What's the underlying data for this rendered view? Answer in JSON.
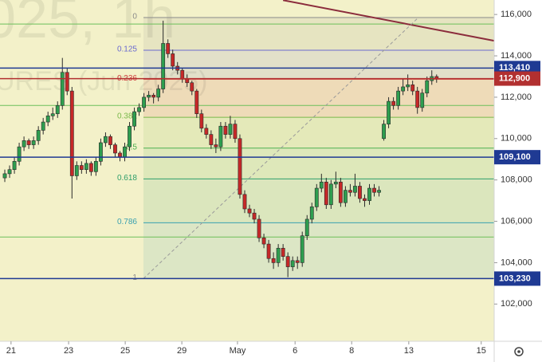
{
  "chart_data": {
    "type": "candlestick",
    "watermark": {
      "symbol": "025, 1h",
      "name": "URES (Jun 2025)"
    },
    "up_color": "#2e9e4f",
    "down_color": "#c62828",
    "xlim": [
      -1,
      102
    ],
    "ylim": [
      100200,
      116700
    ],
    "xticks": [
      {
        "value": 1.3,
        "label": "21"
      },
      {
        "value": 13.3,
        "label": "23"
      },
      {
        "value": 25.1,
        "label": "25"
      },
      {
        "value": 36.9,
        "label": "29"
      },
      {
        "value": 48.5,
        "label": "May"
      },
      {
        "value": 60.5,
        "label": "6"
      },
      {
        "value": 72.3,
        "label": "8"
      },
      {
        "value": 84.2,
        "label": "13"
      },
      {
        "value": 99.3,
        "label": "15"
      }
    ],
    "yticks": [
      {
        "value": 102000,
        "label": "102,000"
      },
      {
        "value": 104000,
        "label": "104,000"
      },
      {
        "value": 106000,
        "label": "106,000"
      },
      {
        "value": 108000,
        "label": "108,000"
      },
      {
        "value": 110000,
        "label": "110,000"
      },
      {
        "value": 112000,
        "label": "112,000"
      },
      {
        "value": 114000,
        "label": "114,000"
      },
      {
        "value": 116000,
        "label": "116,000"
      }
    ],
    "candles": [
      [
        108100,
        108500,
        107900,
        108300
      ],
      [
        108300,
        108700,
        108100,
        108500
      ],
      [
        108500,
        109100,
        108300,
        108900
      ],
      [
        108900,
        109800,
        108700,
        109600
      ],
      [
        109600,
        110100,
        109400,
        109900
      ],
      [
        109900,
        110000,
        109500,
        109700
      ],
      [
        109700,
        110100,
        109500,
        109900
      ],
      [
        109900,
        110600,
        109700,
        110400
      ],
      [
        110400,
        111000,
        110200,
        110800
      ],
      [
        110800,
        111300,
        110600,
        111100
      ],
      [
        111100,
        111500,
        110900,
        111200
      ],
      [
        111200,
        111800,
        111000,
        111600
      ],
      [
        111600,
        113900,
        111400,
        113200
      ],
      [
        113200,
        113400,
        112100,
        112300
      ],
      [
        112300,
        112500,
        107100,
        108200
      ],
      [
        108200,
        108900,
        108000,
        108700
      ],
      [
        108700,
        108900,
        108300,
        108500
      ],
      [
        108500,
        109000,
        108300,
        108800
      ],
      [
        108800,
        108900,
        108200,
        108400
      ],
      [
        108400,
        109100,
        108200,
        108900
      ],
      [
        108900,
        110000,
        108700,
        109800
      ],
      [
        109800,
        110300,
        109600,
        110100
      ],
      [
        110100,
        110200,
        109500,
        109700
      ],
      [
        109700,
        109800,
        109100,
        109300
      ],
      [
        109300,
        109400,
        108900,
        109100
      ],
      [
        109100,
        109800,
        108900,
        109600
      ],
      [
        109600,
        110800,
        109400,
        110600
      ],
      [
        110600,
        111500,
        110400,
        111300
      ],
      [
        111300,
        111700,
        111100,
        111500
      ],
      [
        111500,
        112200,
        111300,
        112000
      ],
      [
        112000,
        112300,
        111800,
        112100
      ],
      [
        112100,
        112200,
        111700,
        112000
      ],
      [
        112000,
        112600,
        111800,
        112400
      ],
      [
        112400,
        115700,
        112200,
        114600
      ],
      [
        114600,
        114800,
        113900,
        114100
      ],
      [
        114100,
        114300,
        113300,
        113500
      ],
      [
        113500,
        113700,
        113100,
        113300
      ],
      [
        113300,
        113400,
        112700,
        112900
      ],
      [
        112900,
        113100,
        112500,
        112700
      ],
      [
        112700,
        112800,
        112100,
        112300
      ],
      [
        112300,
        112400,
        111000,
        111200
      ],
      [
        111200,
        111400,
        110300,
        110500
      ],
      [
        110500,
        110700,
        110000,
        110200
      ],
      [
        110200,
        110400,
        109500,
        109700
      ],
      [
        109700,
        110000,
        109300,
        109600
      ],
      [
        109600,
        110800,
        109400,
        110600
      ],
      [
        110600,
        110800,
        110000,
        110200
      ],
      [
        110200,
        111100,
        110000,
        110700
      ],
      [
        110700,
        110900,
        109800,
        110000
      ],
      [
        110000,
        110200,
        107100,
        107300
      ],
      [
        107300,
        107500,
        106400,
        106600
      ],
      [
        106600,
        106800,
        106200,
        106400
      ],
      [
        106400,
        106600,
        105900,
        106100
      ],
      [
        106100,
        106300,
        105000,
        105200
      ],
      [
        105200,
        105400,
        104700,
        104900
      ],
      [
        104900,
        105100,
        104000,
        104200
      ],
      [
        104200,
        104500,
        103700,
        104000
      ],
      [
        104000,
        104900,
        103800,
        104700
      ],
      [
        104700,
        104900,
        104100,
        104300
      ],
      [
        104300,
        104500,
        103300,
        103800
      ],
      [
        103800,
        104300,
        103600,
        104100
      ],
      [
        104100,
        104300,
        103700,
        104000
      ],
      [
        104000,
        105500,
        103800,
        105300
      ],
      [
        105300,
        106300,
        105100,
        106100
      ],
      [
        106100,
        106900,
        105900,
        106700
      ],
      [
        106700,
        107800,
        106500,
        107600
      ],
      [
        107600,
        108300,
        107400,
        107900
      ],
      [
        107900,
        108100,
        106600,
        106800
      ],
      [
        106800,
        108000,
        106600,
        107800
      ],
      [
        107800,
        108400,
        107600,
        107900
      ],
      [
        107900,
        108100,
        106700,
        106900
      ],
      [
        106900,
        107700,
        106700,
        107500
      ],
      [
        107500,
        107800,
        107200,
        107400
      ],
      [
        107400,
        108300,
        107200,
        107700
      ],
      [
        107700,
        107900,
        106900,
        107100
      ],
      [
        107100,
        107300,
        106700,
        107000
      ],
      [
        107000,
        107800,
        106800,
        107600
      ],
      [
        107600,
        107800,
        107200,
        107400
      ],
      [
        107400,
        107700,
        107200,
        107500
      ],
      [
        110000,
        110900,
        109900,
        110700
      ],
      [
        110700,
        112000,
        110500,
        111800
      ],
      [
        111800,
        112000,
        111400,
        111600
      ],
      [
        111600,
        112500,
        111400,
        112300
      ],
      [
        112300,
        112900,
        112100,
        112500
      ],
      [
        112500,
        113100,
        112300,
        112600
      ],
      [
        112600,
        112800,
        112100,
        112300
      ],
      [
        112300,
        112500,
        111200,
        111500
      ],
      [
        111500,
        112400,
        111300,
        112200
      ],
      [
        112200,
        113000,
        112000,
        112800
      ],
      [
        112800,
        113300,
        112600,
        113000
      ],
      [
        113000,
        113100,
        112700,
        112900
      ]
    ],
    "fib": {
      "start": 28.9,
      "levels": [
        {
          "ratio": 0,
          "price": 115850,
          "color": "#8a8a8a"
        },
        {
          "ratio": 0.125,
          "price": 114270,
          "color": "#6a6ad0"
        },
        {
          "ratio": 0.236,
          "price": 112870,
          "color": "#d04040"
        },
        {
          "ratio": 0.382,
          "price": 111030,
          "color": "#79b84a"
        },
        {
          "ratio": 0.5,
          "price": 109540,
          "color": "#4caf50"
        },
        {
          "ratio": 0.618,
          "price": 108050,
          "color": "#2e9e6a"
        },
        {
          "ratio": 0.786,
          "price": 105930,
          "color": "#3aa0b0"
        },
        {
          "ratio": 1,
          "price": 103230,
          "color": "#8a8a8a"
        }
      ],
      "extra_levels": [
        115540,
        111600,
        105240
      ],
      "extra_color": "#6cbf5a"
    },
    "trend_lines": [
      {
        "color": "#8b2c3c",
        "dashed": false,
        "points": [
          [
            58,
            116690
          ],
          [
            102,
            114730
          ]
        ]
      },
      {
        "color": "#9a9a9a",
        "dashed": true,
        "points": [
          [
            28.9,
            103230
          ],
          [
            86.2,
            115850
          ]
        ]
      }
    ],
    "price_lines": [
      {
        "value": 113410,
        "label": "113,410",
        "color": "#1f3a93"
      },
      {
        "value": 112900,
        "label": "112,900",
        "color": "#b23030"
      },
      {
        "value": 109100,
        "label": "109,100",
        "color": "#1f3a93"
      },
      {
        "value": 103230,
        "label": "103,230",
        "color": "#1f3a93"
      }
    ]
  }
}
